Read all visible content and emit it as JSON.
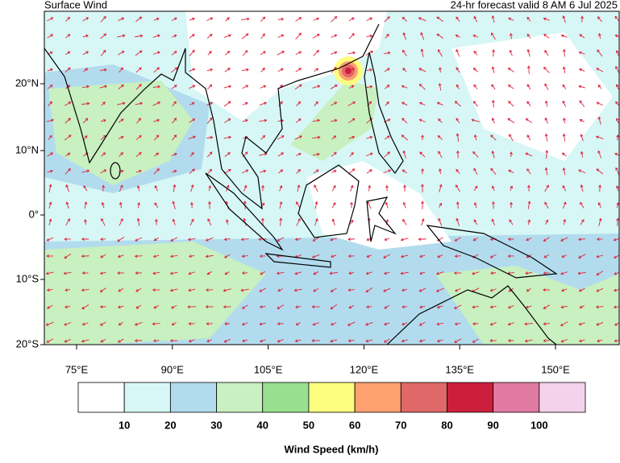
{
  "header": {
    "title": "Surface Wind",
    "subtitle": "24-hr forecast valid 8 AM 6 Jul 2025"
  },
  "map": {
    "lat_labels": [
      "20°N",
      "10°N",
      "0°",
      "10°S",
      "20°S"
    ],
    "lon_labels": [
      "75°E",
      "90°E",
      "105°E",
      "120°E",
      "135°E",
      "150°E"
    ]
  },
  "colorbar": {
    "title": "Wind Speed (km/h)",
    "colors": [
      "#ffffff",
      "#d6f7f5",
      "#b2dcee",
      "#c8f0c0",
      "#98e090",
      "#fdfd80",
      "#fea070",
      "#e06868",
      "#cc1f3c",
      "#e07aa2",
      "#f4d2ec"
    ],
    "labels": [
      "10",
      "20",
      "30",
      "40",
      "50",
      "60",
      "70",
      "80",
      "90",
      "100"
    ]
  }
}
